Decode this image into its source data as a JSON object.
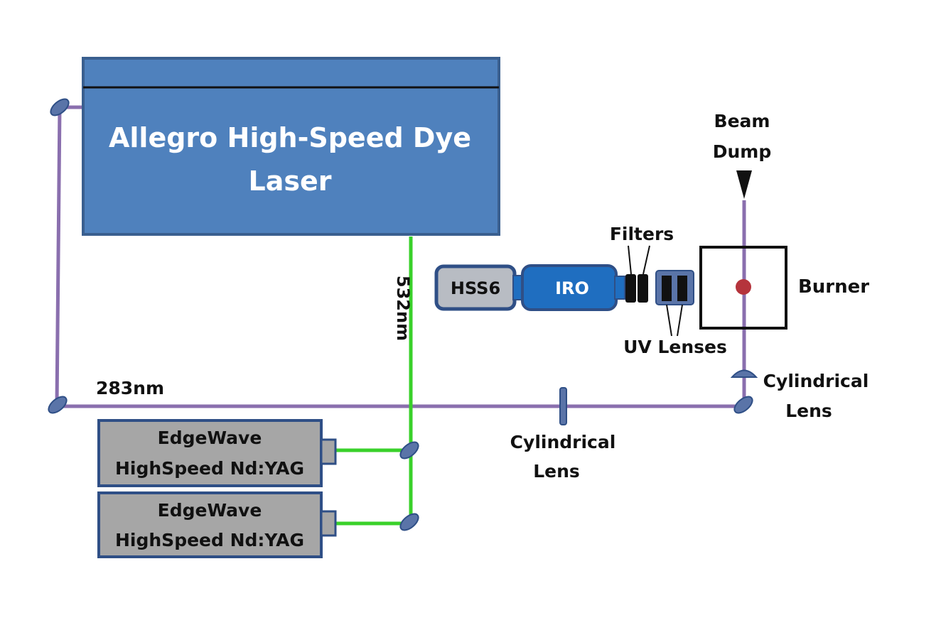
{
  "colors": {
    "uv_beam": "#8a6fae",
    "green_beam": "#39d12a",
    "laser_box": "#4f81bd",
    "laser_border": "#3a5f8f",
    "nd_yag_box": "#a6a6a6",
    "box_border": "#2f4f86",
    "iro": "#1f6ec0",
    "mirror": "#5a74a8",
    "flame_dot": "#b5343c",
    "black": "#111111"
  },
  "labels": {
    "dye_laser_line1": "Allegro High-Speed Dye",
    "dye_laser_line2": "Laser",
    "wavelength_532": "532nm",
    "wavelength_283": "283nm",
    "camera": "HSS6",
    "intensifier": "IRO",
    "filters": "Filters",
    "uv_lenses": "UV Lenses",
    "beam_dump_line1": "Beam",
    "beam_dump_line2": "Dump",
    "burner": "Burner",
    "cyl_lens_right_line1": "Cylindrical",
    "cyl_lens_right_line2": "Lens",
    "cyl_lens_bottom_line1": "Cylindrical",
    "cyl_lens_bottom_line2": "Lens",
    "ndyag_1_line1": "EdgeWave",
    "ndyag_1_line2": "HighSpeed Nd:YAG",
    "ndyag_2_line1": "EdgeWave",
    "ndyag_2_line2": "HighSpeed Nd:YAG"
  }
}
